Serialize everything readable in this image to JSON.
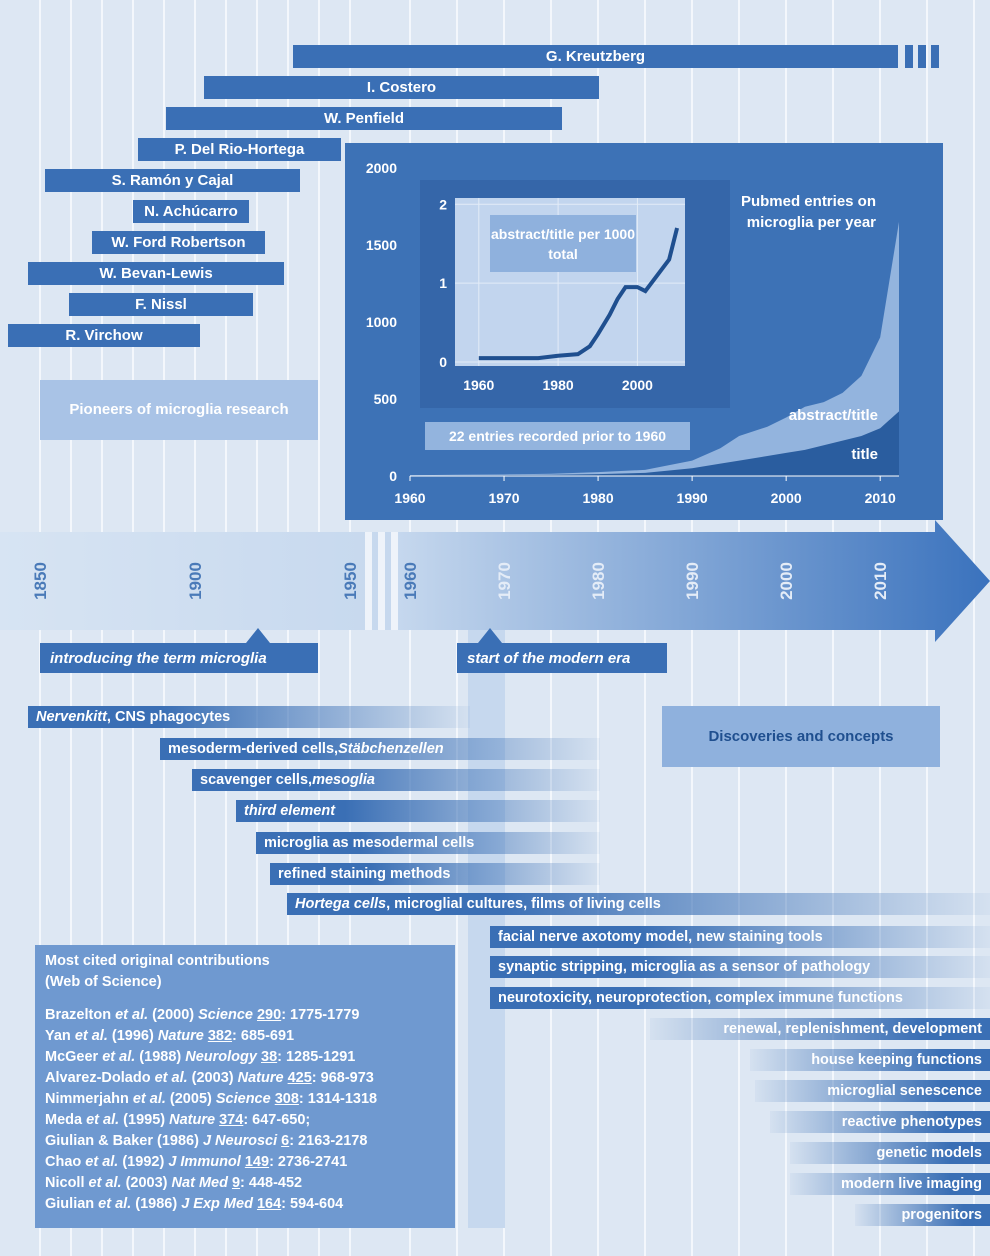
{
  "pioneers": {
    "label": "Pioneers of microglia research",
    "names": [
      "G. Kreutzberg",
      "I. Costero",
      "W. Penfield",
      "P. Del Rio-Hortega",
      "S. Ramón y Cajal",
      "N. Achúcarro",
      "W. Ford Robertson",
      "W. Bevan-Lewis",
      "F. Nissl",
      "R. Virchow"
    ]
  },
  "chart": {
    "type": "area",
    "title": "Pubmed entries on microglia per year",
    "note": "22 entries recorded prior to 1960",
    "x": [
      1960,
      1965,
      1970,
      1975,
      1980,
      1985,
      1990,
      1993,
      1995,
      1998,
      2000,
      2002,
      2004,
      2006,
      2008,
      2010,
      2012
    ],
    "series": [
      {
        "name": "abstract/title",
        "color": "#93b4de",
        "values": [
          5,
          8,
          10,
          15,
          25,
          40,
          100,
          180,
          260,
          320,
          380,
          450,
          480,
          540,
          650,
          900,
          1650
        ]
      },
      {
        "name": "title",
        "color": "#2a5d9f",
        "values": [
          3,
          5,
          6,
          8,
          12,
          20,
          50,
          80,
          100,
          130,
          150,
          170,
          200,
          230,
          260,
          310,
          420
        ]
      }
    ],
    "xlim": [
      1960,
      2012
    ],
    "xticks": [
      1960,
      1970,
      1980,
      1990,
      2000,
      2010
    ],
    "ylim": [
      0,
      2000
    ],
    "yticks": [
      0,
      500,
      1000,
      1500,
      2000
    ]
  },
  "inset": {
    "type": "line",
    "label": "abstract/title per 1000 total",
    "color": "#1f4f8f",
    "x": [
      1960,
      1965,
      1970,
      1975,
      1980,
      1985,
      1988,
      1990,
      1993,
      1995,
      1997,
      2000,
      2002,
      2005,
      2008,
      2010
    ],
    "values": [
      0.05,
      0.05,
      0.05,
      0.05,
      0.08,
      0.1,
      0.2,
      0.35,
      0.6,
      0.8,
      0.95,
      0.95,
      0.9,
      1.1,
      1.3,
      1.7
    ],
    "xlim": [
      1954,
      2012
    ],
    "xticks": [
      1960,
      1980,
      2000
    ],
    "ylim": [
      -0.05,
      2.08
    ],
    "yticks": [
      0,
      1,
      2
    ]
  },
  "timeline": {
    "ticks": [
      1850,
      1900,
      1950,
      1960,
      1970,
      1980,
      1990,
      2000,
      2010
    ],
    "events": [
      "introducing the term microglia",
      "start of the modern era"
    ]
  },
  "discoveries": {
    "label": "Discoveries and concepts",
    "items": [
      [
        {
          "text": "Nervenkitt",
          "style": "italic"
        },
        {
          "text": ", CNS phagocytes"
        }
      ],
      [
        {
          "text": "mesoderm-derived cells, "
        },
        {
          "text": "Stäbchenzellen",
          "style": "italic"
        }
      ],
      [
        {
          "text": "scavenger cells, "
        },
        {
          "text": "mesoglia",
          "style": "italic"
        }
      ],
      [
        {
          "text": "third element",
          "style": "italic"
        }
      ],
      [
        {
          "text": "microglia as mesodermal cells"
        }
      ],
      [
        {
          "text": "refined staining methods"
        }
      ],
      [
        {
          "text": "Hortega cells",
          "style": "italic"
        },
        {
          "text": ", microglial cultures, films of living cells"
        }
      ],
      [
        {
          "text": "facial nerve axotomy model, new staining tools"
        }
      ],
      [
        {
          "text": "synaptic stripping, microglia as a sensor of pathology"
        }
      ],
      [
        {
          "text": "neurotoxicity, neuroprotection, complex immune functions"
        }
      ],
      [
        {
          "text": "renewal, replenishment, development"
        }
      ],
      [
        {
          "text": "house keeping functions"
        }
      ],
      [
        {
          "text": "microglial senescence"
        }
      ],
      [
        {
          "text": "reactive phenotypes"
        }
      ],
      [
        {
          "text": "genetic models"
        }
      ],
      [
        {
          "text": "modern live imaging"
        }
      ],
      [
        {
          "text": "progenitors"
        }
      ]
    ]
  },
  "citations": {
    "heading": [
      "Most cited original contributions",
      "(Web of Science)"
    ],
    "entries": [
      [
        {
          "text": "Brazelton"
        },
        {
          "text": " et al.",
          "style": "italic"
        },
        {
          "text": " (2000) "
        },
        {
          "text": "Science ",
          "style": "italic"
        },
        {
          "text": "290",
          "style": "underline"
        },
        {
          "text": ": 1775-1779"
        }
      ],
      [
        {
          "text": "Yan"
        },
        {
          "text": " et al.",
          "style": "italic"
        },
        {
          "text": " (1996) "
        },
        {
          "text": "Nature ",
          "style": "italic"
        },
        {
          "text": "382",
          "style": "underline"
        },
        {
          "text": ": 685-691"
        }
      ],
      [
        {
          "text": "McGeer"
        },
        {
          "text": " et al.",
          "style": "italic"
        },
        {
          "text": " (1988) "
        },
        {
          "text": "Neurology ",
          "style": "italic"
        },
        {
          "text": "38",
          "style": "underline"
        },
        {
          "text": ": 1285-1291"
        }
      ],
      [
        {
          "text": "Alvarez-Dolado"
        },
        {
          "text": " et al.",
          "style": "italic"
        },
        {
          "text": " (2003) "
        },
        {
          "text": "Nature ",
          "style": "italic"
        },
        {
          "text": "425",
          "style": "underline"
        },
        {
          "text": ": 968-973"
        }
      ],
      [
        {
          "text": "Nimmerjahn"
        },
        {
          "text": " et al.",
          "style": "italic"
        },
        {
          "text": " (2005) "
        },
        {
          "text": "Science ",
          "style": "italic"
        },
        {
          "text": "308",
          "style": "underline"
        },
        {
          "text": ": 1314-1318"
        }
      ],
      [
        {
          "text": "Meda"
        },
        {
          "text": " et al.",
          "style": "italic"
        },
        {
          "text": " (1995) "
        },
        {
          "text": "Nature ",
          "style": "italic"
        },
        {
          "text": "374",
          "style": "underline"
        },
        {
          "text": ": 647-650;"
        }
      ],
      [
        {
          "text": "Giulian & Baker (1986) "
        },
        {
          "text": "J Neurosci ",
          "style": "italic"
        },
        {
          "text": "6",
          "style": "underline"
        },
        {
          "text": ": 2163-2178"
        }
      ],
      [
        {
          "text": "Chao"
        },
        {
          "text": " et al.",
          "style": "italic"
        },
        {
          "text": " (1992) "
        },
        {
          "text": "J Immunol ",
          "style": "italic"
        },
        {
          "text": "149",
          "style": "underline"
        },
        {
          "text": ": 2736-2741"
        }
      ],
      [
        {
          "text": "Nicoll"
        },
        {
          "text": " et al.",
          "style": "italic"
        },
        {
          "text": " (2003) "
        },
        {
          "text": "Nat Med ",
          "style": "italic"
        },
        {
          "text": "9",
          "style": "underline"
        },
        {
          "text": ": 448-452"
        }
      ],
      [
        {
          "text": "Giulian"
        },
        {
          "text": " et al.",
          "style": "italic"
        },
        {
          "text": " (1986) "
        },
        {
          "text": "J Exp Med ",
          "style": "italic"
        },
        {
          "text": "164",
          "style": "underline"
        },
        {
          "text": ": 594-604"
        }
      ]
    ]
  }
}
